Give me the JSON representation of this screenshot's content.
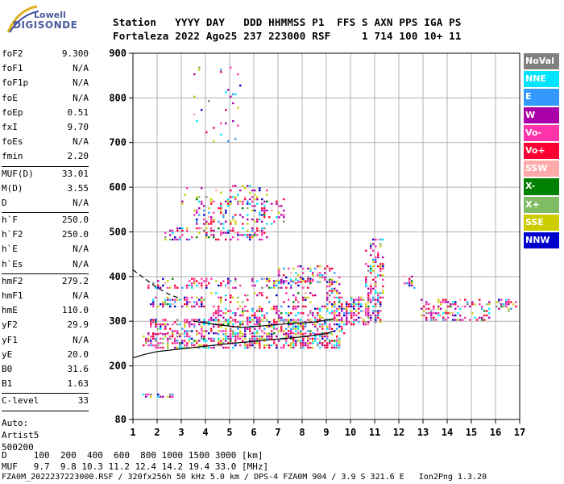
{
  "logo": {
    "line1": "Lowell",
    "line2": "DIGISONDE"
  },
  "header": {
    "line1": "Station   YYYY DAY   DDD HHMMSS P1  FFS S AXN PPS IGA PS",
    "line2": "Fortaleza 2022 Ago25 237 223000 RSF     1 714 100 10+ 11"
  },
  "params": [
    {
      "label": "foF2",
      "value": "9.300"
    },
    {
      "label": "foF1",
      "value": "N/A"
    },
    {
      "label": "foF1p",
      "value": "N/A"
    },
    {
      "label": "foE",
      "value": "N/A"
    },
    {
      "label": "foEp",
      "value": "0.51"
    },
    {
      "label": "fxI",
      "value": "9.70"
    },
    {
      "label": "foEs",
      "value": "N/A"
    },
    {
      "label": "fmin",
      "value": "2.20"
    },
    {
      "label": "MUF(D)",
      "value": "33.01"
    },
    {
      "label": "M(D)",
      "value": "3.55"
    },
    {
      "label": "D",
      "value": "N/A"
    },
    {
      "label": "h`F",
      "value": "250.0"
    },
    {
      "label": "h`F2",
      "value": "250.0"
    },
    {
      "label": "h`E",
      "value": "N/A"
    },
    {
      "label": "h`Es",
      "value": "N/A"
    },
    {
      "label": "hmF2",
      "value": "279.2"
    },
    {
      "label": "hmF1",
      "value": "N/A"
    },
    {
      "label": "hmE",
      "value": "110.0"
    },
    {
      "label": "yF2",
      "value": "29.9"
    },
    {
      "label": "yF1",
      "value": "N/A"
    },
    {
      "label": "yE",
      "value": "20.0"
    },
    {
      "label": "B0",
      "value": "31.6"
    },
    {
      "label": "B1",
      "value": "1.63"
    },
    {
      "label": "C-level",
      "value": "33"
    }
  ],
  "notes": [
    "Auto:",
    "Artist5",
    "500200"
  ],
  "legend": [
    {
      "label": "NoVal",
      "color": "#808080"
    },
    {
      "label": "NNE",
      "color": "#00e5ff"
    },
    {
      "label": "E",
      "color": "#3399ff"
    },
    {
      "label": "W",
      "color": "#aa00aa"
    },
    {
      "label": "Vo-",
      "color": "#ff33aa"
    },
    {
      "label": "Vo+",
      "color": "#ff0033"
    },
    {
      "label": "SSW",
      "color": "#ffaaaa"
    },
    {
      "label": "X-",
      "color": "#008000"
    },
    {
      "label": "X+",
      "color": "#80bb66"
    },
    {
      "label": "SSE",
      "color": "#cccc00"
    },
    {
      "label": "NNW",
      "color": "#0000cc"
    }
  ],
  "footer": {
    "line1": "D     100  200  400  600  800 1000 1500 3000 [km]",
    "line2": "MUF   9.7  9.8 10.3 11.2 12.4 14.2 19.4 33.0 [MHz]",
    "line3": "FZA0M_2022237223000.RSF / 320fx256h 50 kHz 5.0 km / DPS-4 FZA0M 904 / 3.9 S 321.6 E   Ion2Png 1.3.20"
  },
  "chart_data": {
    "type": "scatter",
    "xlim": [
      1,
      17
    ],
    "ylim": [
      80,
      900
    ],
    "x_ticks": [
      1,
      2,
      3,
      4,
      5,
      6,
      7,
      8,
      9,
      10,
      11,
      12,
      13,
      14,
      15,
      16,
      17
    ],
    "y_ticks": [
      80,
      200,
      300,
      400,
      500,
      600,
      700,
      800,
      900
    ],
    "grid": true,
    "echo_clusters": [
      {
        "x": [
          1.4,
          9.5
        ],
        "y": [
          238,
          270
        ],
        "density": 0.55
      },
      {
        "x": [
          1.6,
          9.7
        ],
        "y": [
          270,
          300
        ],
        "density": 0.45
      },
      {
        "x": [
          4.2,
          9.8
        ],
        "y": [
          300,
          330
        ],
        "density": 0.35
      },
      {
        "x": [
          1.7,
          4.0
        ],
        "y": [
          330,
          352
        ],
        "density": 0.5
      },
      {
        "x": [
          4.0,
          8.5
        ],
        "y": [
          340,
          360
        ],
        "density": 0.2
      },
      {
        "x": [
          1.6,
          8.4
        ],
        "y": [
          372,
          392
        ],
        "density": 0.3
      },
      {
        "x": [
          7.0,
          9.3
        ],
        "y": [
          385,
          420
        ],
        "density": 0.3
      },
      {
        "x": [
          9.0,
          9.5
        ],
        "y": [
          300,
          400
        ],
        "density": 0.4
      },
      {
        "x": [
          9.6,
          11.2
        ],
        "y": [
          290,
          350
        ],
        "density": 0.45
      },
      {
        "x": [
          10.6,
          11.3
        ],
        "y": [
          340,
          480
        ],
        "density": 0.3
      },
      {
        "x": [
          12.9,
          15.7
        ],
        "y": [
          300,
          345
        ],
        "density": 0.35
      },
      {
        "x": [
          16.0,
          16.9
        ],
        "y": [
          320,
          345
        ],
        "density": 0.5
      },
      {
        "x": [
          12.2,
          12.6
        ],
        "y": [
          372,
          400
        ],
        "density": 0.45
      },
      {
        "x": [
          2.3,
          6.5
        ],
        "y": [
          480,
          505
        ],
        "density": 0.35
      },
      {
        "x": [
          3.5,
          7.2
        ],
        "y": [
          515,
          570
        ],
        "density": 0.25
      },
      {
        "x": [
          3.0,
          6.5
        ],
        "y": [
          560,
          600
        ],
        "density": 0.15
      },
      {
        "x": [
          3.5,
          5.5
        ],
        "y": [
          700,
          870
        ],
        "density": 0.04
      },
      {
        "x": [
          1.4,
          2.7
        ],
        "y": [
          128,
          134
        ],
        "density": 0.6
      }
    ],
    "lines": [
      {
        "name": "",
        "style": "dashed",
        "x": [
          1.0,
          1.5,
          2.0,
          2.5,
          3.0
        ],
        "y": [
          415,
          395,
          375,
          360,
          350
        ]
      },
      {
        "name": "",
        "style": "solid",
        "x": [
          1.0,
          1.5,
          2.0,
          3.0,
          4.0,
          5.0,
          6.0,
          7.0,
          8.0,
          9.0,
          9.3
        ],
        "y": [
          218,
          226,
          232,
          238,
          244,
          250,
          255,
          260,
          265,
          272,
          278
        ]
      },
      {
        "name": "",
        "style": "solid",
        "x": [
          3.5,
          4.5,
          5.5,
          6.5,
          7.5,
          8.5,
          9.3
        ],
        "y": [
          300,
          292,
          286,
          290,
          295,
          298,
          305
        ]
      }
    ]
  }
}
